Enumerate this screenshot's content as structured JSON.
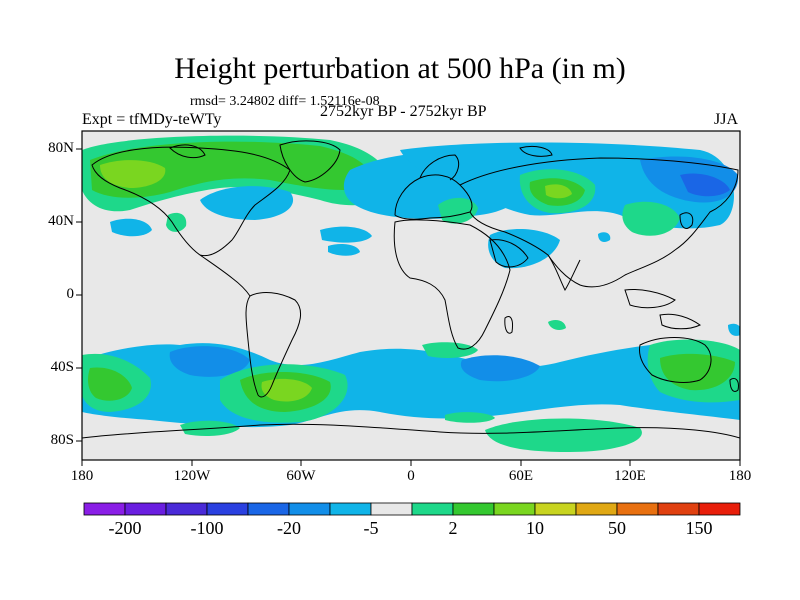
{
  "title": "Height perturbation at 500 hPa (in m)",
  "stats_line": "rmsd= 3.24802 diff= 1.52116e-08",
  "experiment_label": "Expt = tfMDy-teWTy",
  "period_label": "2752kyr BP - 2752kyr BP",
  "season_label": "JJA",
  "lat_ticks": [
    "80N",
    "40N",
    "0",
    "40S",
    "80S"
  ],
  "lon_ticks": [
    "180",
    "120W",
    "60W",
    "0",
    "60E",
    "120E",
    "180"
  ],
  "colorbar": {
    "colors": [
      "#8a1ee6",
      "#6a1ee0",
      "#4a2ad8",
      "#2a40e0",
      "#1a66e6",
      "#128ee8",
      "#10b4e8",
      "#e8e8e8",
      "#1ed88a",
      "#34c830",
      "#7ad620",
      "#c8d420",
      "#e0a814",
      "#e87010",
      "#e04010",
      "#e81e0a"
    ],
    "labels": [
      "-200",
      "-100",
      "-20",
      "-5",
      "2",
      "10",
      "50",
      "150"
    ]
  },
  "field_colors": {
    "background": "#e8e8e8",
    "neg_light": "#10b4e8",
    "neg_mid": "#128ee8",
    "neg_dark": "#1a66e6",
    "pos_light": "#1ed88a",
    "pos_mid": "#34c830",
    "pos_strong": "#7ad620",
    "pos_peak": "#c8d420"
  }
}
